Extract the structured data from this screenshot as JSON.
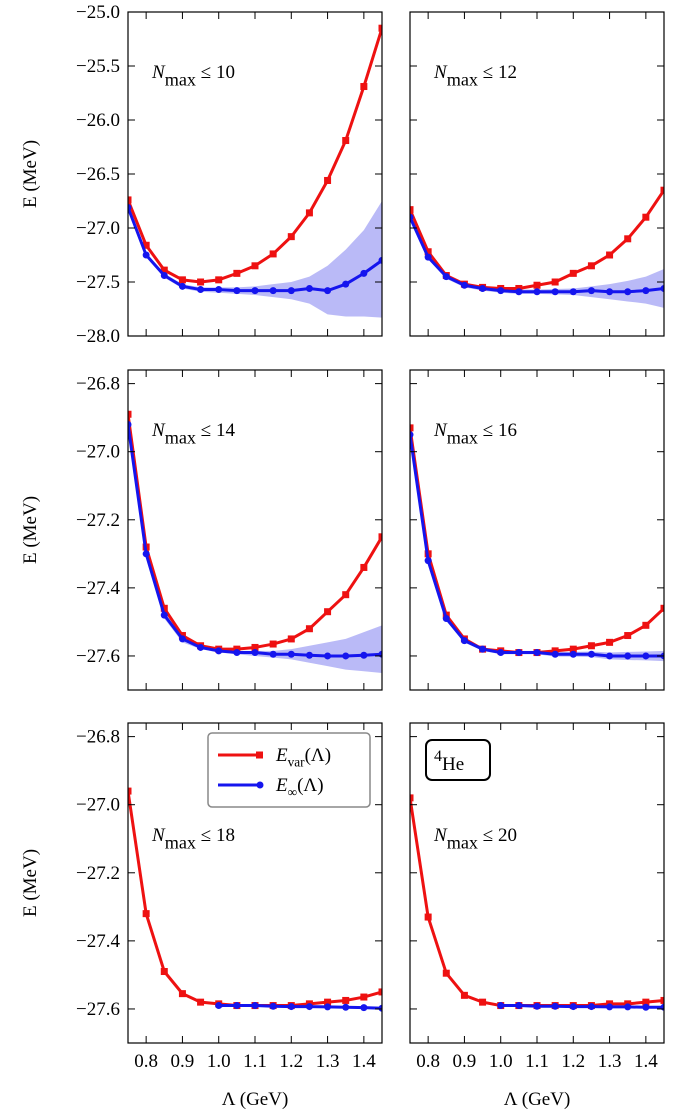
{
  "chart_data": [
    {
      "type": "line",
      "annotation": [
        "N",
        "max",
        " ≤ 10"
      ],
      "y_label": "E (MeV)",
      "x": [
        0.75,
        0.8,
        0.85,
        0.9,
        0.95,
        1.0,
        1.05,
        1.1,
        1.15,
        1.2,
        1.25,
        1.3,
        1.35,
        1.4,
        1.45
      ],
      "xlim": [
        0.75,
        1.45
      ],
      "xticks": [
        0.8,
        0.9,
        1.0,
        1.1,
        1.2,
        1.3,
        1.4
      ],
      "xtick_labels": false,
      "ylim": [
        -28,
        -25
      ],
      "yticks": [
        {
          "value": -28,
          "label": "−28.0"
        },
        {
          "value": -27.5,
          "label": "−27.5"
        },
        {
          "value": -27,
          "label": "−27.0"
        },
        {
          "value": -26.5,
          "label": "−26.5"
        },
        {
          "value": -26,
          "label": "−26.0"
        },
        {
          "value": -25.5,
          "label": "−25.5"
        },
        {
          "value": -25,
          "label": "−25.0"
        }
      ],
      "series": [
        {
          "color": "#ee1111",
          "marker": "square",
          "values": [
            -26.74,
            -27.16,
            -27.39,
            -27.48,
            -27.5,
            -27.48,
            -27.42,
            -27.35,
            -27.24,
            -27.08,
            -26.86,
            -26.56,
            -26.19,
            -25.69,
            -25.15
          ]
        },
        {
          "color": "#1515ee",
          "marker": "circle",
          "band_color": "#8c8cf2",
          "values": [
            -26.81,
            -27.25,
            -27.44,
            -27.54,
            -27.57,
            -27.57,
            -27.58,
            -27.58,
            -27.58,
            -27.58,
            -27.56,
            -27.58,
            -27.52,
            -27.42,
            -27.3
          ],
          "upper": [
            -26.79,
            -27.23,
            -27.42,
            -27.52,
            -27.55,
            -27.55,
            -27.55,
            -27.54,
            -27.52,
            -27.5,
            -27.45,
            -27.35,
            -27.2,
            -27.02,
            -26.75
          ],
          "lower": [
            -26.83,
            -27.27,
            -27.46,
            -27.56,
            -27.59,
            -27.6,
            -27.61,
            -27.62,
            -27.64,
            -27.66,
            -27.7,
            -27.8,
            -27.82,
            -27.82,
            -27.83
          ]
        }
      ]
    },
    {
      "type": "line",
      "annotation": [
        "N",
        "max",
        " ≤ 12"
      ],
      "x": [
        0.75,
        0.8,
        0.85,
        0.9,
        0.95,
        1.0,
        1.05,
        1.1,
        1.15,
        1.2,
        1.25,
        1.3,
        1.35,
        1.4,
        1.45
      ],
      "xlim": [
        0.75,
        1.45
      ],
      "xticks": [
        0.8,
        0.9,
        1.0,
        1.1,
        1.2,
        1.3,
        1.4
      ],
      "xtick_labels": false,
      "ylim": [
        -28,
        -25
      ],
      "yticks": [
        -28,
        -27.5,
        -27,
        -26.5,
        -26,
        -25.5,
        -25
      ],
      "ytick_labels": false,
      "series": [
        {
          "color": "#ee1111",
          "marker": "square",
          "values": [
            -26.83,
            -27.22,
            -27.44,
            -27.52,
            -27.55,
            -27.56,
            -27.56,
            -27.53,
            -27.5,
            -27.42,
            -27.35,
            -27.25,
            -27.1,
            -26.9,
            -26.65
          ]
        },
        {
          "color": "#1515ee",
          "marker": "circle",
          "band_color": "#8c8cf2",
          "values": [
            -26.9,
            -27.27,
            -27.45,
            -27.53,
            -27.56,
            -27.58,
            -27.59,
            -27.59,
            -27.59,
            -27.59,
            -27.58,
            -27.59,
            -27.59,
            -27.58,
            -27.56
          ],
          "upper": [
            -26.88,
            -27.25,
            -27.43,
            -27.51,
            -27.54,
            -27.56,
            -27.57,
            -27.57,
            -27.565,
            -27.56,
            -27.54,
            -27.52,
            -27.49,
            -27.45,
            -27.38
          ],
          "lower": [
            -26.92,
            -27.29,
            -27.47,
            -27.55,
            -27.58,
            -27.6,
            -27.61,
            -27.61,
            -27.615,
            -27.62,
            -27.64,
            -27.66,
            -27.68,
            -27.7,
            -27.74
          ]
        }
      ]
    },
    {
      "type": "line",
      "annotation": [
        "N",
        "max",
        " ≤ 14"
      ],
      "y_label": "E (MeV)",
      "x": [
        0.75,
        0.8,
        0.85,
        0.9,
        0.95,
        1.0,
        1.05,
        1.1,
        1.15,
        1.2,
        1.25,
        1.3,
        1.35,
        1.4,
        1.45
      ],
      "xlim": [
        0.75,
        1.45
      ],
      "xticks": [
        0.8,
        0.9,
        1.0,
        1.1,
        1.2,
        1.3,
        1.4
      ],
      "xtick_labels": false,
      "ylim": [
        -27.7,
        -26.76
      ],
      "yticks": [
        {
          "value": -27.6,
          "label": "−27.6"
        },
        {
          "value": -27.4,
          "label": "−27.4"
        },
        {
          "value": -27.2,
          "label": "−27.2"
        },
        {
          "value": -27,
          "label": "−27.0"
        },
        {
          "value": -26.8,
          "label": "−26.8"
        }
      ],
      "series": [
        {
          "color": "#ee1111",
          "marker": "square",
          "values": [
            -26.89,
            -27.28,
            -27.46,
            -27.54,
            -27.57,
            -27.58,
            -27.58,
            -27.575,
            -27.565,
            -27.55,
            -27.52,
            -27.47,
            -27.42,
            -27.34,
            -27.25
          ]
        },
        {
          "color": "#1515ee",
          "marker": "circle",
          "band_color": "#8c8cf2",
          "values": [
            -26.92,
            -27.3,
            -27.48,
            -27.55,
            -27.575,
            -27.585,
            -27.59,
            -27.59,
            -27.595,
            -27.595,
            -27.598,
            -27.6,
            -27.6,
            -27.598,
            -27.595
          ],
          "upper": [
            -26.91,
            -27.29,
            -27.47,
            -27.54,
            -27.57,
            -27.58,
            -27.585,
            -27.585,
            -27.585,
            -27.58,
            -27.57,
            -27.56,
            -27.55,
            -27.53,
            -27.51
          ],
          "lower": [
            -26.93,
            -27.31,
            -27.49,
            -27.56,
            -27.58,
            -27.59,
            -27.595,
            -27.6,
            -27.605,
            -27.61,
            -27.62,
            -27.63,
            -27.64,
            -27.645,
            -27.65
          ]
        }
      ]
    },
    {
      "type": "line",
      "annotation": [
        "N",
        "max",
        " ≤ 16"
      ],
      "x": [
        0.75,
        0.8,
        0.85,
        0.9,
        0.95,
        1.0,
        1.05,
        1.1,
        1.15,
        1.2,
        1.25,
        1.3,
        1.35,
        1.4,
        1.45
      ],
      "xlim": [
        0.75,
        1.45
      ],
      "xticks": [
        0.8,
        0.9,
        1.0,
        1.1,
        1.2,
        1.3,
        1.4
      ],
      "xtick_labels": false,
      "ylim": [
        -27.7,
        -26.76
      ],
      "yticks": [
        -27.6,
        -27.4,
        -27.2,
        -27,
        -26.8
      ],
      "ytick_labels": false,
      "series": [
        {
          "color": "#ee1111",
          "marker": "square",
          "values": [
            -26.93,
            -27.3,
            -27.48,
            -27.55,
            -27.58,
            -27.585,
            -27.59,
            -27.59,
            -27.585,
            -27.58,
            -27.57,
            -27.56,
            -27.54,
            -27.51,
            -27.46
          ]
        },
        {
          "color": "#1515ee",
          "marker": "circle",
          "band_color": "#8c8cf2",
          "values": [
            -26.95,
            -27.32,
            -27.49,
            -27.555,
            -27.58,
            -27.59,
            -27.59,
            -27.59,
            -27.595,
            -27.595,
            -27.595,
            -27.6,
            -27.6,
            -27.6,
            -27.6
          ],
          "upper": [
            -26.945,
            -27.315,
            -27.485,
            -27.55,
            -27.575,
            -27.585,
            -27.585,
            -27.585,
            -27.588,
            -27.588,
            -27.587,
            -27.59,
            -27.588,
            -27.587,
            -27.585
          ],
          "lower": [
            -26.955,
            -27.325,
            -27.495,
            -27.56,
            -27.585,
            -27.595,
            -27.595,
            -27.595,
            -27.602,
            -27.602,
            -27.603,
            -27.61,
            -27.612,
            -27.613,
            -27.615
          ]
        }
      ]
    },
    {
      "type": "line",
      "annotation": [
        "N",
        "max",
        " ≤ 18"
      ],
      "y_label": "E (MeV)",
      "x_label": "Λ (GeV)",
      "legend": "upper right",
      "x": [
        0.75,
        0.8,
        0.85,
        0.9,
        0.95,
        1.0,
        1.05,
        1.1,
        1.15,
        1.2,
        1.25,
        1.3,
        1.35,
        1.4,
        1.45
      ],
      "xlim": [
        0.75,
        1.45
      ],
      "xticks": [
        0.8,
        0.9,
        {
          "value": 1,
          "label": "1.0"
        },
        1.1,
        1.2,
        1.3,
        1.4
      ],
      "ylim": [
        -27.7,
        -26.76
      ],
      "yticks": [
        {
          "value": -27.6,
          "label": "−27.6"
        },
        {
          "value": -27.4,
          "label": "−27.4"
        },
        {
          "value": -27.2,
          "label": "−27.2"
        },
        {
          "value": -27,
          "label": "−27.0"
        },
        {
          "value": -26.8,
          "label": "−26.8"
        }
      ],
      "series": [
        {
          "name": [
            "E",
            "var",
            "(Λ)"
          ],
          "color": "#ee1111",
          "marker": "square",
          "values": [
            -26.96,
            -27.32,
            -27.49,
            -27.555,
            -27.58,
            -27.585,
            -27.59,
            -27.59,
            -27.59,
            -27.59,
            -27.585,
            -27.58,
            -27.575,
            -27.565,
            -27.55
          ]
        },
        {
          "name": [
            "E",
            "∞",
            "(Λ)"
          ],
          "color": "#1515ee",
          "marker": "circle",
          "values": [
            null,
            null,
            null,
            null,
            null,
            -27.59,
            -27.59,
            -27.59,
            -27.592,
            -27.593,
            -27.593,
            -27.594,
            -27.595,
            -27.596,
            -27.598
          ]
        }
      ]
    },
    {
      "type": "line",
      "annotation": [
        "N",
        "max",
        " ≤ 20"
      ],
      "x_label": "Λ (GeV)",
      "box_label": [
        "4",
        "He"
      ],
      "x": [
        0.75,
        0.8,
        0.85,
        0.9,
        0.95,
        1.0,
        1.05,
        1.1,
        1.15,
        1.2,
        1.25,
        1.3,
        1.35,
        1.4,
        1.45
      ],
      "xlim": [
        0.75,
        1.45
      ],
      "xticks": [
        0.8,
        0.9,
        {
          "value": 1,
          "label": "1.0"
        },
        1.1,
        1.2,
        1.3,
        1.4
      ],
      "ylim": [
        -27.7,
        -26.76
      ],
      "yticks": [
        -27.6,
        -27.4,
        -27.2,
        -27,
        -26.8
      ],
      "ytick_labels": false,
      "series": [
        {
          "color": "#ee1111",
          "marker": "square",
          "values": [
            -26.98,
            -27.33,
            -27.495,
            -27.56,
            -27.58,
            -27.59,
            -27.59,
            -27.59,
            -27.59,
            -27.59,
            -27.59,
            -27.585,
            -27.585,
            -27.58,
            -27.575
          ]
        },
        {
          "color": "#1515ee",
          "marker": "circle",
          "values": [
            null,
            null,
            null,
            null,
            null,
            -27.59,
            -27.59,
            -27.592,
            -27.592,
            -27.593,
            -27.593,
            -27.594,
            -27.594,
            -27.595,
            -27.595
          ]
        }
      ]
    }
  ]
}
